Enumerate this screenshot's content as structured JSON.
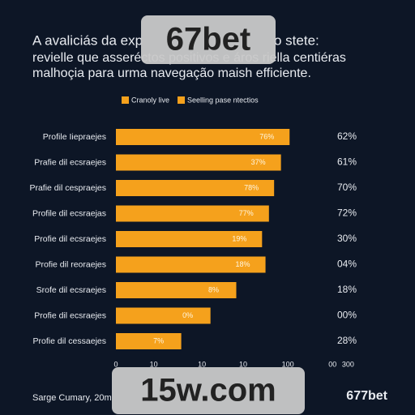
{
  "chart_data": {
    "type": "barh",
    "title_lines": [
      "A avaliciás da exp",
      "o stete:",
      "revielle que asseréctos positivos e áros riella centiéras",
      "malhoçia para urma navegação maish efficiente."
    ],
    "legend": [
      {
        "name": "Cranoly live",
        "color": "#f5a11c"
      },
      {
        "name": "Seelling pase ntectios",
        "color": "#f5a11c"
      }
    ],
    "categories": [
      "Profile Iiepraejes",
      "Prafie dil ecsraejes",
      "Prafie dil cespraejes",
      "Profile dil ecsraejas",
      "Profie dil ecsraejes",
      "Profie dil reoraejes",
      "Srofe dil ecsraejes",
      "Profie dil ecsraejes",
      "Profie dil cessaejes"
    ],
    "values": [
      101,
      96,
      92,
      89,
      85,
      87,
      70,
      55,
      38
    ],
    "bar_labels": [
      "76%",
      "37%",
      "78%",
      "77%",
      "19%",
      "18%",
      "8%",
      "0%",
      "7%"
    ],
    "right_labels": [
      "62%",
      "61%",
      "70%",
      "72%",
      "30%",
      "04%",
      "18%",
      "00%",
      "28%"
    ],
    "color": "#f5a11c",
    "xlim": [
      0,
      140
    ],
    "xticks": [
      {
        "value": 0,
        "label": "0"
      },
      {
        "value": 22,
        "label": "10"
      },
      {
        "value": 50,
        "label": "10"
      },
      {
        "value": 74,
        "label": "10"
      },
      {
        "value": 100,
        "label": "100"
      },
      {
        "value": 126,
        "label": "00"
      },
      {
        "value": 135,
        "label": "300"
      }
    ],
    "source": "Sarge Cumary, 20m",
    "brand": "677bet",
    "watermarks": [
      "67bet",
      "15w.com"
    ]
  }
}
